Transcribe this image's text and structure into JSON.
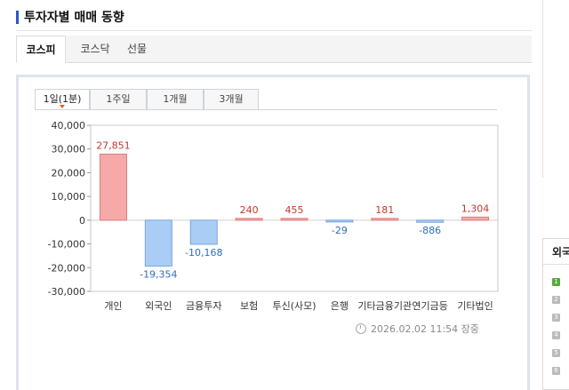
{
  "section": {
    "title": "투자자별 매매 동향"
  },
  "main_tabs": [
    {
      "label": "코스피",
      "active": true
    },
    {
      "label": "코스닥",
      "active": false
    },
    {
      "label": "선물",
      "active": false
    }
  ],
  "period_tabs": [
    {
      "label": "1일(1분)",
      "active": true
    },
    {
      "label": "1주일",
      "active": false
    },
    {
      "label": "1개월",
      "active": false
    },
    {
      "label": "3개월",
      "active": false
    }
  ],
  "timestamp": "2026.02.02 11:54 장중",
  "right_panel": {
    "title": "외국",
    "items": [
      "1",
      "2",
      "3",
      "4",
      "5",
      "6"
    ]
  },
  "colors": {
    "positive_bar": "#f5a9a9",
    "positive_border": "#e07b7b",
    "positive_label": "#c0392b",
    "negative_bar": "#a9cdf5",
    "negative_border": "#7aa6db",
    "negative_label": "#2e6fb8"
  },
  "chart_data": {
    "type": "bar",
    "categories": [
      "개인",
      "외국인",
      "금융투자",
      "보험",
      "투신(사모)",
      "은행",
      "기타금융기관",
      "연기금등",
      "기타법인"
    ],
    "values": [
      27851,
      -19354,
      -10168,
      240,
      455,
      -29,
      181,
      -886,
      1304
    ],
    "value_labels": [
      "27,851",
      "-19,354",
      "-10,168",
      "240",
      "455",
      "-29",
      "181",
      "-886",
      "1,304"
    ],
    "yticks": [
      "40,000",
      "30,000",
      "20,000",
      "10,000",
      "0",
      "-10,000",
      "-20,000",
      "-30,000"
    ],
    "ytick_values": [
      40000,
      30000,
      20000,
      10000,
      0,
      -10000,
      -20000,
      -30000
    ],
    "ylim": [
      -30000,
      40000
    ],
    "grid": false,
    "title": "",
    "xlabel": "",
    "ylabel": ""
  }
}
